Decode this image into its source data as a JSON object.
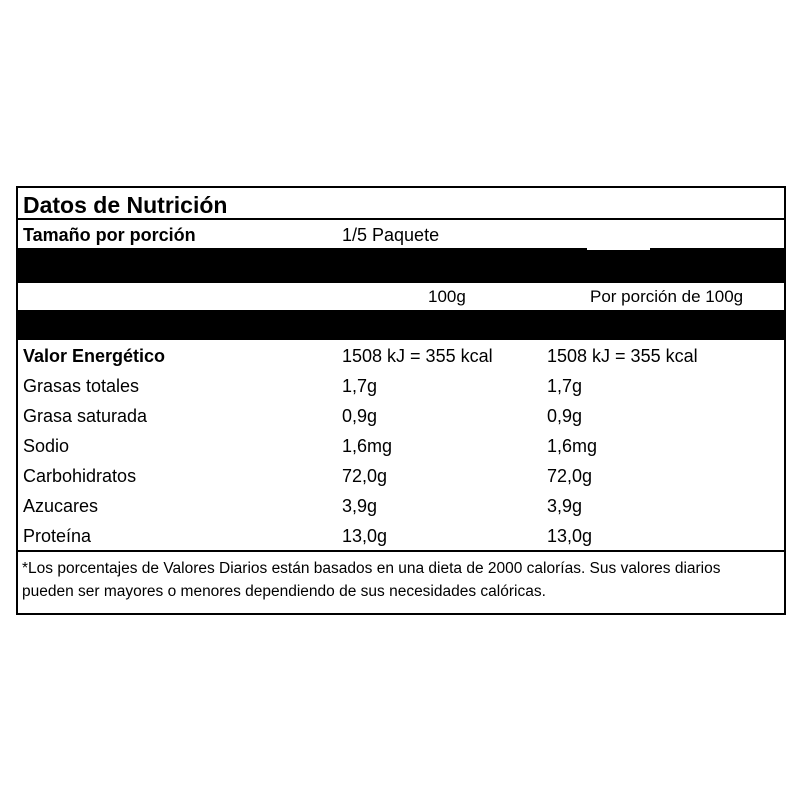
{
  "label": {
    "title": "Datos de Nutrición",
    "serving_label": "Tamaño por porción",
    "serving_value": "1/5 Paquete",
    "header": {
      "col1": "100g",
      "col2": "Por porción de 100g"
    },
    "rows": [
      [
        "Valor Energético",
        "1508 kJ = 355 kcal",
        "1508 kJ = 355 kcal"
      ],
      [
        "Grasas totales",
        "1,7g",
        "1,7g"
      ],
      [
        "Grasa saturada",
        "0,9g",
        "0,9g"
      ],
      [
        "Sodio",
        "1,6mg",
        "1,6mg"
      ],
      [
        "Carbohidratos",
        "72,0g",
        "72,0g"
      ],
      [
        "Azucares",
        "3,9g",
        "3,9g"
      ],
      [
        "Proteína",
        "13,0g",
        "13,0g"
      ]
    ],
    "footnote": [
      "*Los porcentajes de Valores Diarios están basados en una dieta de 2000 calorías. Sus valores diarios",
      "pueden ser mayores o menores dependiendo de sus necesidades calóricas."
    ]
  }
}
